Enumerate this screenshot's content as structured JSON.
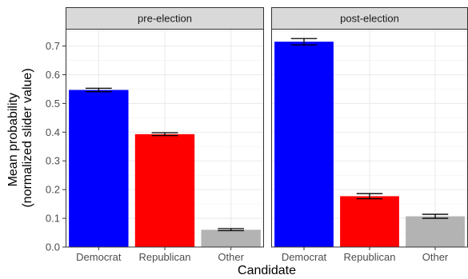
{
  "chart_data": {
    "type": "bar",
    "xlabel": "Candidate",
    "ylabel_lines": [
      "Mean probability",
      "(normalized slider value)"
    ],
    "categories": [
      "Democrat",
      "Republican",
      "Other"
    ],
    "ylim": [
      0,
      0.76
    ],
    "yticks": [
      0.0,
      0.1,
      0.2,
      0.3,
      0.4,
      0.5,
      0.6,
      0.7
    ],
    "ytick_labels": [
      "0.0",
      "0.1",
      "0.2",
      "0.3",
      "0.4",
      "0.5",
      "0.6",
      "0.7"
    ],
    "grid": true,
    "colors": {
      "Democrat": "#0000ff",
      "Republican": "#ff0000",
      "Other": "#b3b3b3"
    },
    "panels": [
      {
        "label": "pre-election",
        "values": [
          0.547,
          0.393,
          0.06
        ],
        "error_low": [
          0.541,
          0.388,
          0.057
        ],
        "error_high": [
          0.553,
          0.398,
          0.064
        ]
      },
      {
        "label": "post-election",
        "values": [
          0.715,
          0.177,
          0.107
        ],
        "error_low": [
          0.704,
          0.168,
          0.1
        ],
        "error_high": [
          0.726,
          0.186,
          0.114
        ]
      }
    ]
  }
}
